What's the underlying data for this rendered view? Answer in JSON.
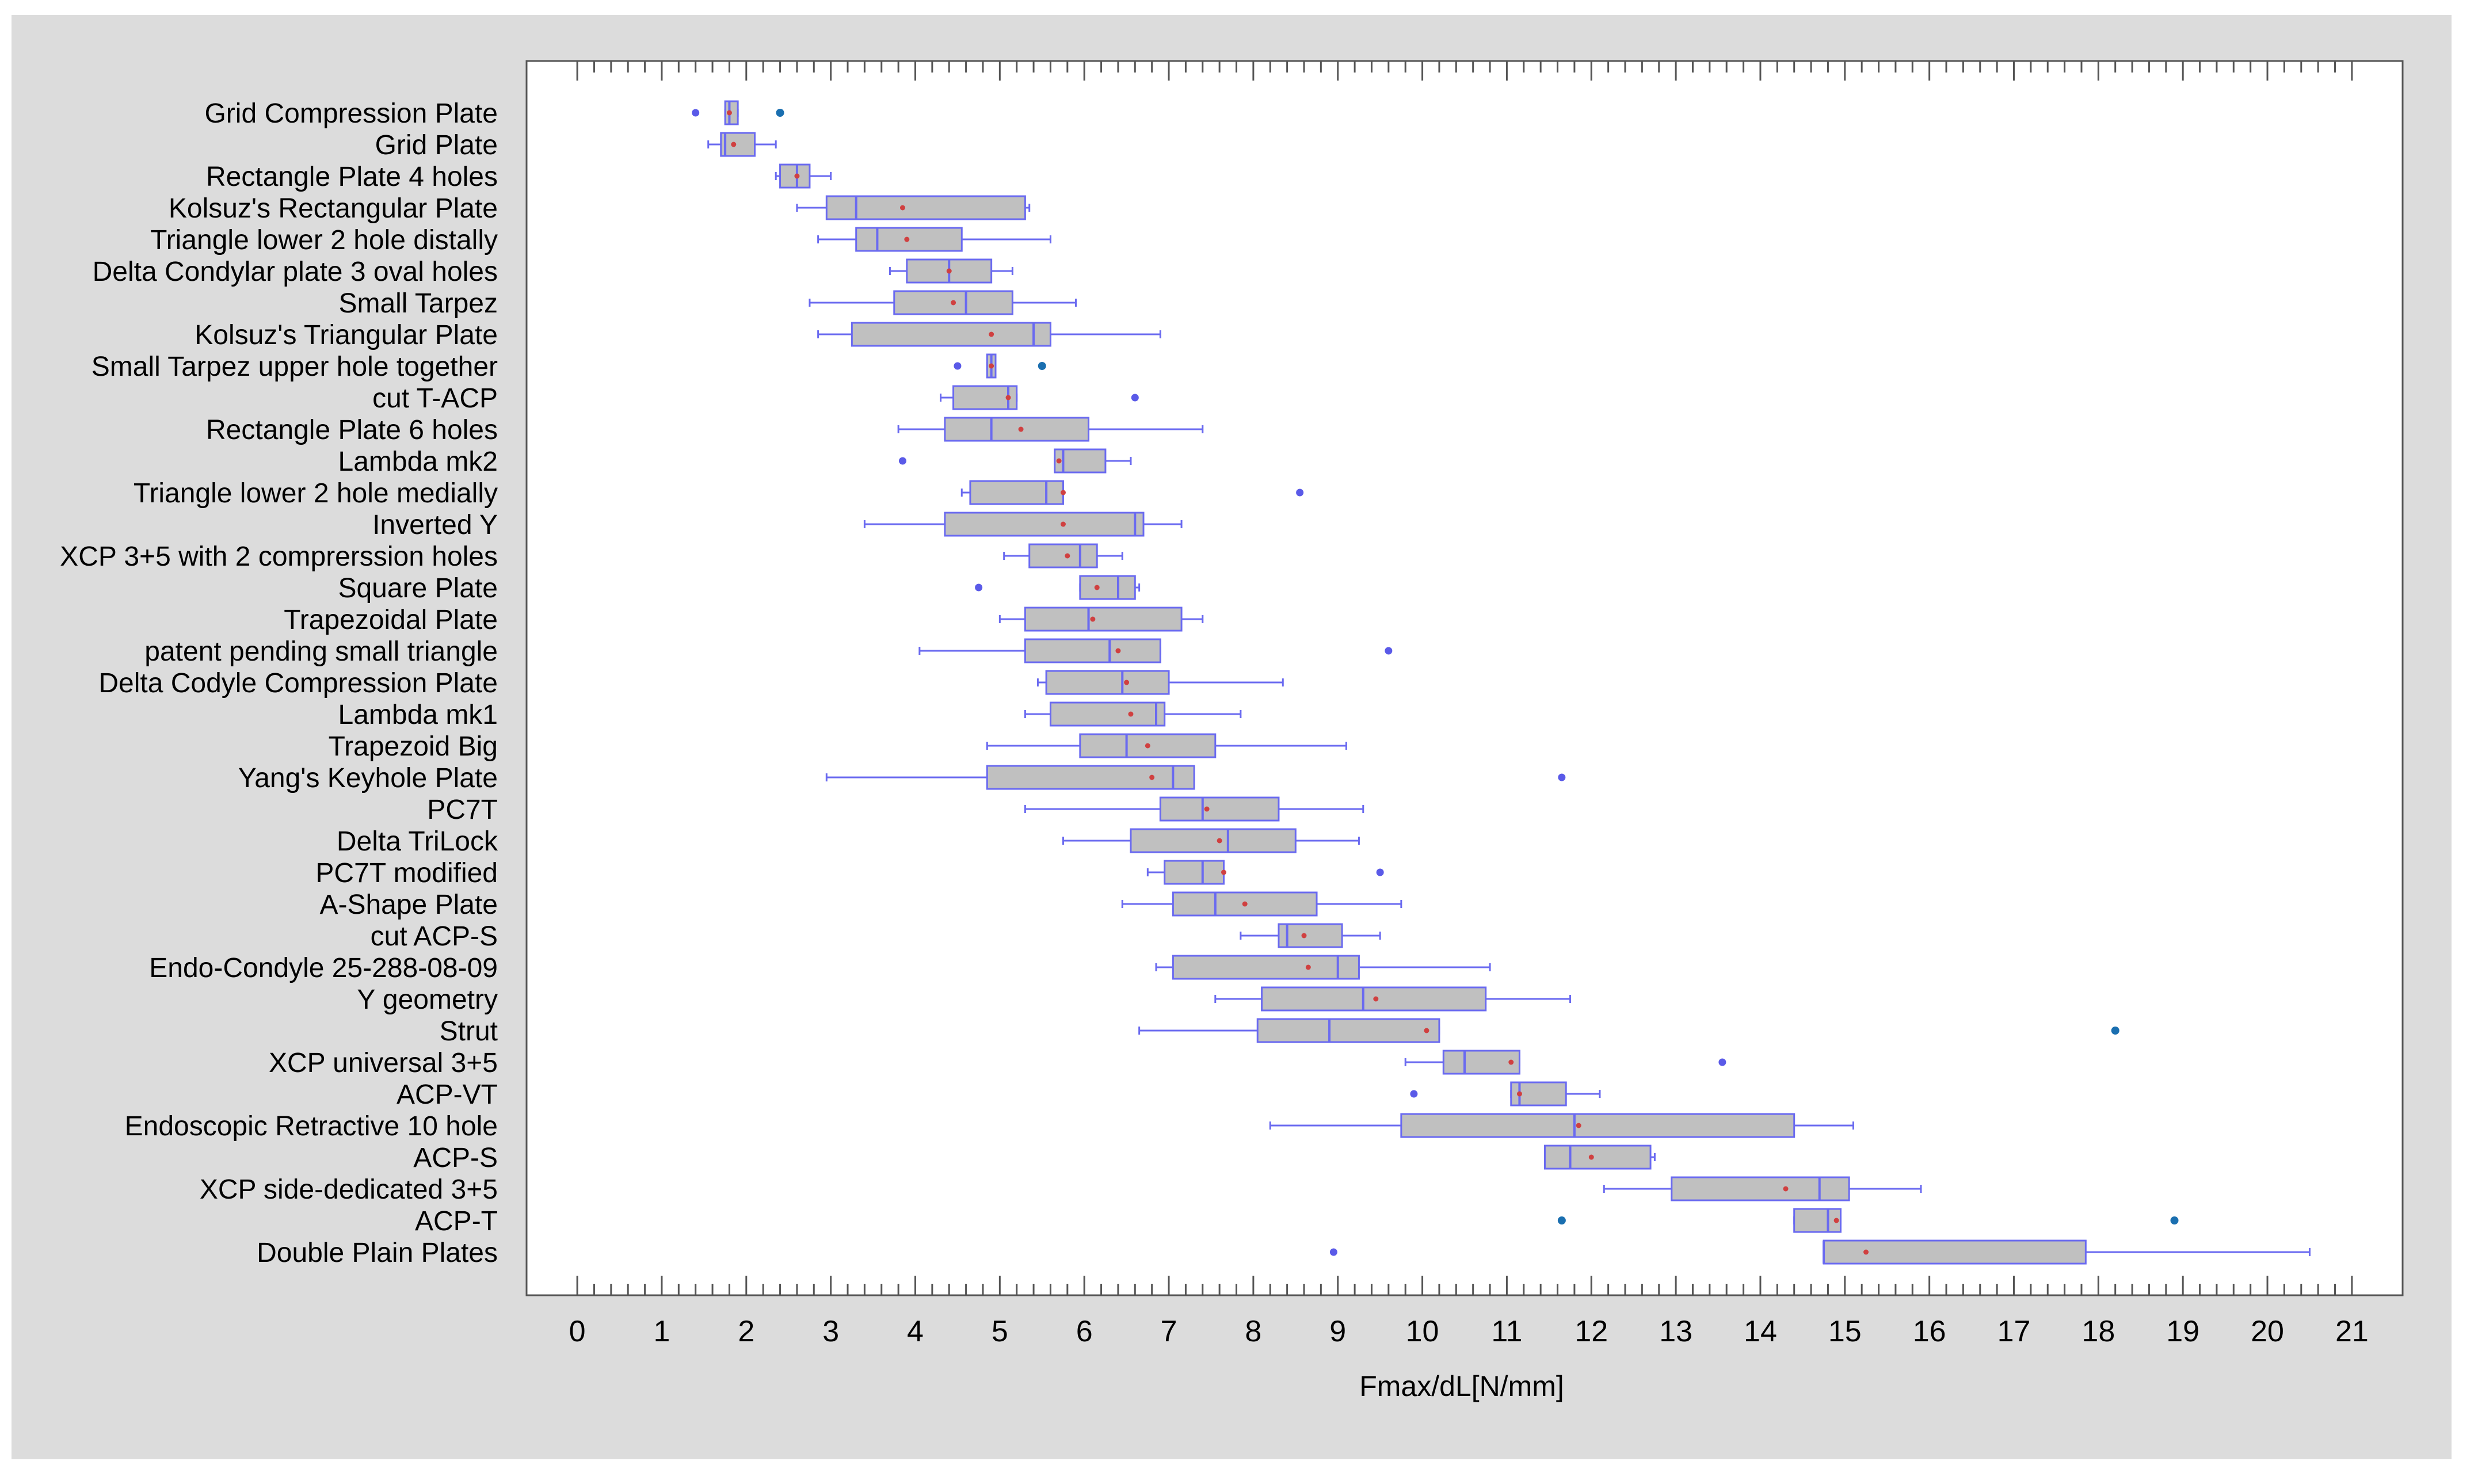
{
  "chart_data": {
    "type": "boxplot",
    "orientation": "horizontal",
    "xlabel": "Fmax/dL[N/mm]",
    "xlim": [
      -0.6,
      21.6
    ],
    "xticks": [
      0,
      1,
      2,
      3,
      4,
      5,
      6,
      7,
      8,
      9,
      10,
      11,
      12,
      13,
      14,
      15,
      16,
      17,
      18,
      19,
      20,
      21
    ],
    "minor_tick_step": 0.2,
    "grid": false,
    "colors": {
      "box_fill": "#c0c0c0",
      "box_stroke": "#6a6af0",
      "mean_marker": "#d04040",
      "outlier_mild": "#5a5ae8",
      "outlier_far": "#1a6fb0",
      "frame_bg": "#dcdcdc",
      "plot_bg": "#ffffff"
    },
    "series": [
      {
        "label": "Grid Compression Plate",
        "whisker_low": 1.75,
        "q1": 1.75,
        "median": 1.8,
        "q3": 1.9,
        "whisker_high": 1.9,
        "mean": 1.8,
        "outliers": [
          1.4
        ],
        "far_outliers": [
          2.4
        ]
      },
      {
        "label": "Grid Plate",
        "whisker_low": 1.55,
        "q1": 1.7,
        "median": 1.75,
        "q3": 2.1,
        "whisker_high": 2.35,
        "mean": 1.85,
        "outliers": [],
        "far_outliers": []
      },
      {
        "label": "Rectangle Plate 4 holes",
        "whisker_low": 2.35,
        "q1": 2.4,
        "median": 2.6,
        "q3": 2.75,
        "whisker_high": 3.0,
        "mean": 2.6,
        "outliers": [],
        "far_outliers": []
      },
      {
        "label": "Kolsuz's Rectangular Plate",
        "whisker_low": 2.6,
        "q1": 2.95,
        "median": 3.3,
        "q3": 5.3,
        "whisker_high": 5.35,
        "mean": 3.85,
        "outliers": [],
        "far_outliers": []
      },
      {
        "label": "Triangle lower 2 hole distally",
        "whisker_low": 2.85,
        "q1": 3.3,
        "median": 3.55,
        "q3": 4.55,
        "whisker_high": 5.6,
        "mean": 3.9,
        "outliers": [],
        "far_outliers": []
      },
      {
        "label": "Delta Condylar plate 3 oval holes",
        "whisker_low": 3.7,
        "q1": 3.9,
        "median": 4.4,
        "q3": 4.9,
        "whisker_high": 5.15,
        "mean": 4.4,
        "outliers": [],
        "far_outliers": []
      },
      {
        "label": "Small Tarpez",
        "whisker_low": 2.75,
        "q1": 3.75,
        "median": 4.6,
        "q3": 5.15,
        "whisker_high": 5.9,
        "mean": 4.45,
        "outliers": [],
        "far_outliers": []
      },
      {
        "label": "Kolsuz's Triangular Plate",
        "whisker_low": 2.85,
        "q1": 3.25,
        "median": 5.4,
        "q3": 5.6,
        "whisker_high": 6.9,
        "mean": 4.9,
        "outliers": [],
        "far_outliers": []
      },
      {
        "label": "Small Tarpez upper hole together",
        "whisker_low": 4.85,
        "q1": 4.85,
        "median": 4.9,
        "q3": 4.95,
        "whisker_high": 4.95,
        "mean": 4.9,
        "outliers": [
          4.5
        ],
        "far_outliers": [
          5.5
        ]
      },
      {
        "label": "cut T-ACP",
        "whisker_low": 4.3,
        "q1": 4.45,
        "median": 5.1,
        "q3": 5.2,
        "whisker_high": 5.2,
        "mean": 5.1,
        "outliers": [
          6.6
        ],
        "far_outliers": []
      },
      {
        "label": "Rectangle Plate 6 holes",
        "whisker_low": 3.8,
        "q1": 4.35,
        "median": 4.9,
        "q3": 6.05,
        "whisker_high": 7.4,
        "mean": 5.25,
        "outliers": [],
        "far_outliers": []
      },
      {
        "label": "Lambda mk2",
        "whisker_low": 5.65,
        "q1": 5.65,
        "median": 5.75,
        "q3": 6.25,
        "whisker_high": 6.55,
        "mean": 5.7,
        "outliers": [
          3.85
        ],
        "far_outliers": []
      },
      {
        "label": "Triangle lower 2 hole medially",
        "whisker_low": 4.55,
        "q1": 4.65,
        "median": 5.55,
        "q3": 5.75,
        "whisker_high": 5.75,
        "mean": 5.75,
        "outliers": [
          8.55
        ],
        "far_outliers": []
      },
      {
        "label": "Inverted Y",
        "whisker_low": 3.4,
        "q1": 4.35,
        "median": 6.6,
        "q3": 6.7,
        "whisker_high": 7.15,
        "mean": 5.75,
        "outliers": [],
        "far_outliers": []
      },
      {
        "label": "XCP 3+5 with 2 comprerssion holes",
        "whisker_low": 5.05,
        "q1": 5.35,
        "median": 5.95,
        "q3": 6.15,
        "whisker_high": 6.45,
        "mean": 5.8,
        "outliers": [],
        "far_outliers": []
      },
      {
        "label": "Square Plate",
        "whisker_low": 5.95,
        "q1": 5.95,
        "median": 6.4,
        "q3": 6.6,
        "whisker_high": 6.65,
        "mean": 6.15,
        "outliers": [
          4.75
        ],
        "far_outliers": []
      },
      {
        "label": "Trapezoidal Plate",
        "whisker_low": 5.0,
        "q1": 5.3,
        "median": 6.05,
        "q3": 7.15,
        "whisker_high": 7.4,
        "mean": 6.1,
        "outliers": [],
        "far_outliers": []
      },
      {
        "label": "patent pending small triangle",
        "whisker_low": 4.05,
        "q1": 5.3,
        "median": 6.3,
        "q3": 6.9,
        "whisker_high": 6.9,
        "mean": 6.4,
        "outliers": [
          9.6
        ],
        "far_outliers": []
      },
      {
        "label": "Delta Codyle Compression Plate",
        "whisker_low": 5.45,
        "q1": 5.55,
        "median": 6.45,
        "q3": 7.0,
        "whisker_high": 8.35,
        "mean": 6.5,
        "outliers": [],
        "far_outliers": []
      },
      {
        "label": "Lambda mk1",
        "whisker_low": 5.3,
        "q1": 5.6,
        "median": 6.85,
        "q3": 6.95,
        "whisker_high": 7.85,
        "mean": 6.55,
        "outliers": [],
        "far_outliers": []
      },
      {
        "label": "Trapezoid Big",
        "whisker_low": 4.85,
        "q1": 5.95,
        "median": 6.5,
        "q3": 7.55,
        "whisker_high": 9.1,
        "mean": 6.75,
        "outliers": [],
        "far_outliers": []
      },
      {
        "label": "Yang's Keyhole Plate",
        "whisker_low": 2.95,
        "q1": 4.85,
        "median": 7.05,
        "q3": 7.3,
        "whisker_high": 7.3,
        "mean": 6.8,
        "outliers": [
          11.65
        ],
        "far_outliers": []
      },
      {
        "label": "PC7T",
        "whisker_low": 5.3,
        "q1": 6.9,
        "median": 7.4,
        "q3": 8.3,
        "whisker_high": 9.3,
        "mean": 7.45,
        "outliers": [],
        "far_outliers": []
      },
      {
        "label": "Delta TriLock",
        "whisker_low": 5.75,
        "q1": 6.55,
        "median": 7.7,
        "q3": 8.5,
        "whisker_high": 9.25,
        "mean": 7.6,
        "outliers": [],
        "far_outliers": []
      },
      {
        "label": "PC7T modified",
        "whisker_low": 6.75,
        "q1": 6.95,
        "median": 7.4,
        "q3": 7.65,
        "whisker_high": 7.65,
        "mean": 7.65,
        "outliers": [
          9.5
        ],
        "far_outliers": []
      },
      {
        "label": "A-Shape Plate",
        "whisker_low": 6.45,
        "q1": 7.05,
        "median": 7.55,
        "q3": 8.75,
        "whisker_high": 9.75,
        "mean": 7.9,
        "outliers": [],
        "far_outliers": []
      },
      {
        "label": "cut ACP-S",
        "whisker_low": 7.85,
        "q1": 8.3,
        "median": 8.4,
        "q3": 9.05,
        "whisker_high": 9.5,
        "mean": 8.6,
        "outliers": [],
        "far_outliers": []
      },
      {
        "label": "Endo-Condyle 25-288-08-09",
        "whisker_low": 6.85,
        "q1": 7.05,
        "median": 9.0,
        "q3": 9.25,
        "whisker_high": 10.8,
        "mean": 8.65,
        "outliers": [],
        "far_outliers": []
      },
      {
        "label": "Y geometry",
        "whisker_low": 7.55,
        "q1": 8.1,
        "median": 9.3,
        "q3": 10.75,
        "whisker_high": 11.75,
        "mean": 9.45,
        "outliers": [],
        "far_outliers": []
      },
      {
        "label": "Strut",
        "whisker_low": 6.65,
        "q1": 8.05,
        "median": 8.9,
        "q3": 10.2,
        "whisker_high": 10.2,
        "mean": 10.05,
        "outliers": [],
        "far_outliers": [
          18.2
        ]
      },
      {
        "label": "XCP universal 3+5",
        "whisker_low": 9.8,
        "q1": 10.25,
        "median": 10.5,
        "q3": 11.15,
        "whisker_high": 11.15,
        "mean": 11.05,
        "outliers": [
          13.55
        ],
        "far_outliers": []
      },
      {
        "label": "ACP-VT",
        "whisker_low": 11.05,
        "q1": 11.05,
        "median": 11.15,
        "q3": 11.7,
        "whisker_high": 12.1,
        "mean": 11.15,
        "outliers": [
          9.9
        ],
        "far_outliers": []
      },
      {
        "label": "Endoscopic Retractive 10 hole",
        "whisker_low": 8.2,
        "q1": 9.75,
        "median": 11.8,
        "q3": 14.4,
        "whisker_high": 15.1,
        "mean": 11.85,
        "outliers": [],
        "far_outliers": []
      },
      {
        "label": "ACP-S",
        "whisker_low": 11.45,
        "q1": 11.45,
        "median": 11.75,
        "q3": 12.7,
        "whisker_high": 12.75,
        "mean": 12.0,
        "outliers": [],
        "far_outliers": []
      },
      {
        "label": "XCP side-dedicated 3+5",
        "whisker_low": 12.15,
        "q1": 12.95,
        "median": 14.7,
        "q3": 15.05,
        "whisker_high": 15.9,
        "mean": 14.3,
        "outliers": [],
        "far_outliers": []
      },
      {
        "label": "ACP-T",
        "whisker_low": 14.4,
        "q1": 14.4,
        "median": 14.8,
        "q3": 14.95,
        "whisker_high": 14.95,
        "mean": 14.9,
        "outliers": [],
        "far_outliers": [
          11.65,
          18.9
        ]
      },
      {
        "label": "Double Plain Plates",
        "whisker_low": 14.75,
        "q1": 14.75,
        "median": 14.75,
        "q3": 17.85,
        "whisker_high": 20.5,
        "mean": 15.25,
        "outliers": [
          8.95
        ],
        "far_outliers": []
      }
    ]
  }
}
